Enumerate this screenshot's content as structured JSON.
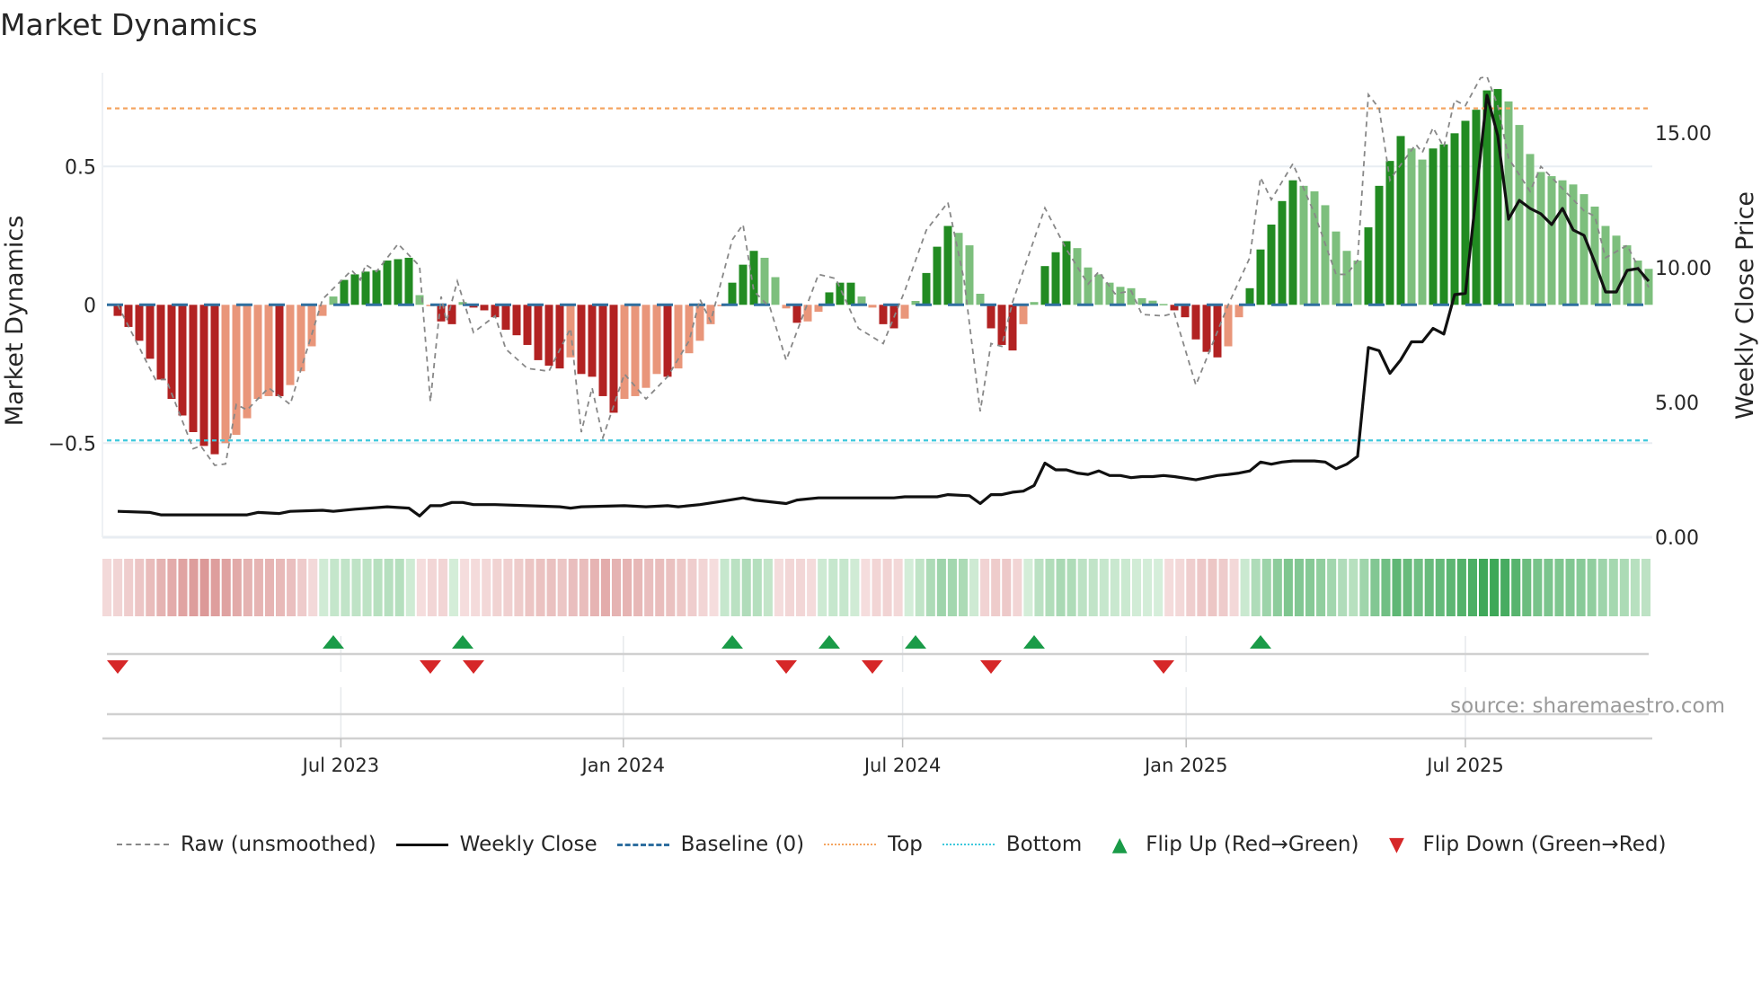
{
  "title": "Market Dynamics",
  "source": "source: sharemaestro.com",
  "colors": {
    "bar_pos_strong": "#228b22",
    "bar_pos_weak": "#7dbf7d",
    "bar_neg_strong": "#b22222",
    "bar_neg_weak": "#e9967a",
    "top": "#f4a460",
    "bottom": "#3cc8dc",
    "baseline": "#2f6f9f",
    "raw": "#888888",
    "close": "#111111",
    "flip_up": "#1a9b48",
    "flip_down": "#d62728"
  },
  "chart_data": {
    "type": "bar",
    "title": "Market Dynamics",
    "ylabel": "Market Dynamics",
    "y2label": "Weekly Close Price",
    "ylim": [
      -0.84,
      0.88
    ],
    "y2lim": [
      0,
      17.2
    ],
    "yticks": [
      {
        "v": 0.5,
        "label": "0.5"
      },
      {
        "v": 0,
        "label": "0"
      },
      {
        "v": -0.5,
        "label": "−0.5"
      }
    ],
    "y2ticks": [
      {
        "v": 15,
        "label": "15.00"
      },
      {
        "v": 10,
        "label": "10.00"
      },
      {
        "v": 5,
        "label": "5.00"
      },
      {
        "v": 0,
        "label": "0.00"
      }
    ],
    "xticks": [
      {
        "week": 20.7,
        "label": "Jul 2023"
      },
      {
        "week": 46.9,
        "label": "Jan 2024"
      },
      {
        "week": 72.8,
        "label": "Jul 2024"
      },
      {
        "week": 99.1,
        "label": "Jan 2025"
      },
      {
        "week": 125,
        "label": "Jul 2025"
      }
    ],
    "top_level": 0.71,
    "bottom_level": -0.49,
    "baseline": 0,
    "momentum": [
      -0.04,
      -0.08,
      -0.13,
      -0.195,
      -0.27,
      -0.34,
      -0.4,
      -0.46,
      -0.51,
      -0.54,
      -0.5,
      -0.47,
      -0.41,
      -0.34,
      -0.33,
      -0.33,
      -0.29,
      -0.24,
      -0.15,
      -0.04,
      0.03,
      0.09,
      0.11,
      0.12,
      0.125,
      0.16,
      0.165,
      0.17,
      0.035,
      -0.005,
      -0.06,
      -0.07,
      0.01,
      -0.01,
      -0.02,
      -0.045,
      -0.09,
      -0.11,
      -0.145,
      -0.2,
      -0.22,
      -0.23,
      -0.19,
      -0.25,
      -0.26,
      -0.33,
      -0.39,
      -0.34,
      -0.33,
      -0.3,
      -0.25,
      -0.26,
      -0.23,
      -0.175,
      -0.13,
      -0.07,
      -0.005,
      0.08,
      0.145,
      0.195,
      0.17,
      0.1,
      -0.013,
      -0.065,
      -0.06,
      -0.025,
      0.045,
      0.08,
      0.08,
      0.03,
      -0.01,
      -0.07,
      -0.085,
      -0.05,
      0.014,
      0.115,
      0.21,
      0.285,
      0.26,
      0.215,
      0.04,
      -0.085,
      -0.145,
      -0.165,
      -0.07,
      0.01,
      0.14,
      0.19,
      0.23,
      0.205,
      0.135,
      0.11,
      0.08,
      0.065,
      0.06,
      0.024,
      0.015,
      0.003,
      -0.02,
      -0.045,
      -0.125,
      -0.17,
      -0.19,
      -0.15,
      -0.045,
      0.06,
      0.2,
      0.29,
      0.375,
      0.45,
      0.43,
      0.41,
      0.36,
      0.265,
      0.195,
      0.16,
      0.28,
      0.43,
      0.52,
      0.61,
      0.565,
      0.525,
      0.565,
      0.58,
      0.62,
      0.665,
      0.705,
      0.775,
      0.78,
      0.735,
      0.65,
      0.545,
      0.48,
      0.465,
      0.45,
      0.435,
      0.4,
      0.355,
      0.285,
      0.25,
      0.215,
      0.16,
      0.13
    ],
    "raw": [
      [
        0,
        0
      ],
      [
        3.5,
        -0.27
      ],
      [
        4.5,
        -0.27
      ],
      [
        7,
        -0.52
      ],
      [
        7.7,
        -0.51
      ],
      [
        9,
        -0.58
      ],
      [
        10,
        -0.575
      ],
      [
        11,
        -0.36
      ],
      [
        12,
        -0.38
      ],
      [
        14,
        -0.3
      ],
      [
        16,
        -0.36
      ],
      [
        19,
        0.02
      ],
      [
        21.7,
        0.125
      ],
      [
        22.5,
        0.09
      ],
      [
        23,
        0.145
      ],
      [
        24,
        0.12
      ],
      [
        26,
        0.22
      ],
      [
        27,
        0.18
      ],
      [
        28,
        0.14
      ],
      [
        29,
        -0.35
      ],
      [
        30,
        0.03
      ],
      [
        30.5,
        -0.06
      ],
      [
        31.5,
        0.085
      ],
      [
        33,
        -0.1
      ],
      [
        35,
        -0.04
      ],
      [
        36,
        -0.16
      ],
      [
        38,
        -0.23
      ],
      [
        40,
        -0.24
      ],
      [
        42,
        -0.085
      ],
      [
        43,
        -0.46
      ],
      [
        44,
        -0.3
      ],
      [
        45,
        -0.48
      ],
      [
        47,
        -0.25
      ],
      [
        49,
        -0.34
      ],
      [
        51,
        -0.26
      ],
      [
        53,
        -0.13
      ],
      [
        54,
        0.02
      ],
      [
        55,
        -0.06
      ],
      [
        57,
        0.235
      ],
      [
        58,
        0.29
      ],
      [
        59,
        0.05
      ],
      [
        60.5,
        -0.01
      ],
      [
        62,
        -0.2
      ],
      [
        65,
        0.11
      ],
      [
        66.6,
        0.095
      ],
      [
        68.7,
        -0.085
      ],
      [
        71,
        -0.14
      ],
      [
        73,
        0.05
      ],
      [
        75,
        0.27
      ],
      [
        77,
        0.37
      ],
      [
        78.5,
        0.09
      ],
      [
        80,
        -0.385
      ],
      [
        81,
        -0.14
      ],
      [
        82,
        -0.15
      ],
      [
        83,
        0.01
      ],
      [
        86,
        0.35
      ],
      [
        88,
        0.2
      ],
      [
        90,
        0.075
      ],
      [
        91,
        0.12
      ],
      [
        92.5,
        0.04
      ],
      [
        94,
        0.05
      ],
      [
        95,
        -0.035
      ],
      [
        97,
        -0.04
      ],
      [
        98,
        -0.03
      ],
      [
        100,
        -0.29
      ],
      [
        103,
        0
      ],
      [
        105,
        0.17
      ],
      [
        106,
        0.46
      ],
      [
        107,
        0.38
      ],
      [
        109,
        0.51
      ],
      [
        111,
        0.33
      ],
      [
        113,
        0.11
      ],
      [
        114,
        0.11
      ],
      [
        115,
        0.16
      ],
      [
        116,
        0.76
      ],
      [
        117,
        0.71
      ],
      [
        118,
        0.45
      ],
      [
        118.6,
        0.485
      ],
      [
        120.4,
        0.58
      ],
      [
        121,
        0.55
      ],
      [
        122,
        0.64
      ],
      [
        123,
        0.57
      ],
      [
        124,
        0.74
      ],
      [
        125,
        0.72
      ],
      [
        126.4,
        0.82
      ],
      [
        127,
        0.825
      ],
      [
        128,
        0.72
      ],
      [
        129,
        0.53
      ],
      [
        131,
        0.41
      ],
      [
        132,
        0.5
      ],
      [
        133,
        0.46
      ],
      [
        136,
        0.34
      ],
      [
        137,
        0.32
      ],
      [
        138,
        0.17
      ],
      [
        140,
        0.215
      ],
      [
        142,
        0.063
      ]
    ],
    "weekly_close": [
      [
        0,
        0.96
      ],
      [
        3,
        0.92
      ],
      [
        4,
        0.83
      ],
      [
        12,
        0.83
      ],
      [
        13,
        0.92
      ],
      [
        15,
        0.88
      ],
      [
        16,
        0.96
      ],
      [
        19,
        1.0
      ],
      [
        20,
        0.96
      ],
      [
        22,
        1.04
      ],
      [
        25,
        1.13
      ],
      [
        27,
        1.08
      ],
      [
        28,
        0.79
      ],
      [
        29,
        1.17
      ],
      [
        30,
        1.17
      ],
      [
        31,
        1.29
      ],
      [
        32,
        1.29
      ],
      [
        33,
        1.21
      ],
      [
        35,
        1.21
      ],
      [
        38,
        1.17
      ],
      [
        41,
        1.13
      ],
      [
        42,
        1.08
      ],
      [
        43,
        1.13
      ],
      [
        47,
        1.17
      ],
      [
        49,
        1.13
      ],
      [
        51,
        1.17
      ],
      [
        52,
        1.13
      ],
      [
        54,
        1.21
      ],
      [
        56,
        1.33
      ],
      [
        58,
        1.46
      ],
      [
        59,
        1.38
      ],
      [
        62,
        1.25
      ],
      [
        63,
        1.38
      ],
      [
        65,
        1.46
      ],
      [
        68,
        1.46
      ],
      [
        72,
        1.46
      ],
      [
        73,
        1.5
      ],
      [
        76,
        1.5
      ],
      [
        77,
        1.58
      ],
      [
        79,
        1.54
      ],
      [
        80,
        1.25
      ],
      [
        81,
        1.58
      ],
      [
        82,
        1.58
      ],
      [
        83,
        1.67
      ],
      [
        84,
        1.71
      ],
      [
        85,
        1.92
      ],
      [
        86,
        2.75
      ],
      [
        87,
        2.5
      ],
      [
        88,
        2.5
      ],
      [
        89,
        2.38
      ],
      [
        90,
        2.33
      ],
      [
        91,
        2.46
      ],
      [
        92,
        2.29
      ],
      [
        93,
        2.29
      ],
      [
        94,
        2.21
      ],
      [
        95,
        2.25
      ],
      [
        96,
        2.25
      ],
      [
        97,
        2.29
      ],
      [
        98,
        2.25
      ],
      [
        100,
        2.13
      ],
      [
        102,
        2.29
      ],
      [
        103,
        2.33
      ],
      [
        104,
        2.38
      ],
      [
        105,
        2.46
      ],
      [
        106,
        2.79
      ],
      [
        107,
        2.71
      ],
      [
        108,
        2.79
      ],
      [
        109,
        2.83
      ],
      [
        111,
        2.83
      ],
      [
        112,
        2.79
      ],
      [
        113,
        2.54
      ],
      [
        114,
        2.71
      ],
      [
        115,
        3.0
      ],
      [
        116,
        7.04
      ],
      [
        117,
        6.92
      ],
      [
        118,
        6.08
      ],
      [
        119,
        6.58
      ],
      [
        120,
        7.25
      ],
      [
        121,
        7.25
      ],
      [
        122,
        7.75
      ],
      [
        123,
        7.54
      ],
      [
        124,
        9.0
      ],
      [
        125,
        9.05
      ],
      [
        127,
        16.4
      ],
      [
        128,
        14.9
      ],
      [
        129,
        11.8
      ],
      [
        130,
        12.5
      ],
      [
        131,
        12.2
      ],
      [
        132,
        12.0
      ],
      [
        133,
        11.6
      ],
      [
        134,
        12.2
      ],
      [
        135,
        11.4
      ],
      [
        136,
        11.2
      ],
      [
        137,
        10.2
      ],
      [
        138,
        9.1
      ],
      [
        139,
        9.1
      ],
      [
        140,
        9.9
      ],
      [
        141,
        9.97
      ],
      [
        142,
        9.5
      ]
    ],
    "flip_up_weeks": [
      20,
      32,
      57,
      66,
      74,
      85,
      106
    ],
    "flip_down_weeks": [
      0,
      29,
      33,
      62,
      70,
      81,
      97
    ]
  },
  "legend": [
    {
      "label": "Raw (unsmoothed)",
      "kind": "raw"
    },
    {
      "label": "Weekly Close",
      "kind": "close"
    },
    {
      "label": "Baseline (0)",
      "kind": "baseline"
    },
    {
      "label": "Top",
      "kind": "top"
    },
    {
      "label": "Bottom",
      "kind": "bottom"
    },
    {
      "label": "Flip Up (Red→Green)",
      "kind": "up"
    },
    {
      "label": "Flip Down (Green→Red)",
      "kind": "down"
    }
  ]
}
